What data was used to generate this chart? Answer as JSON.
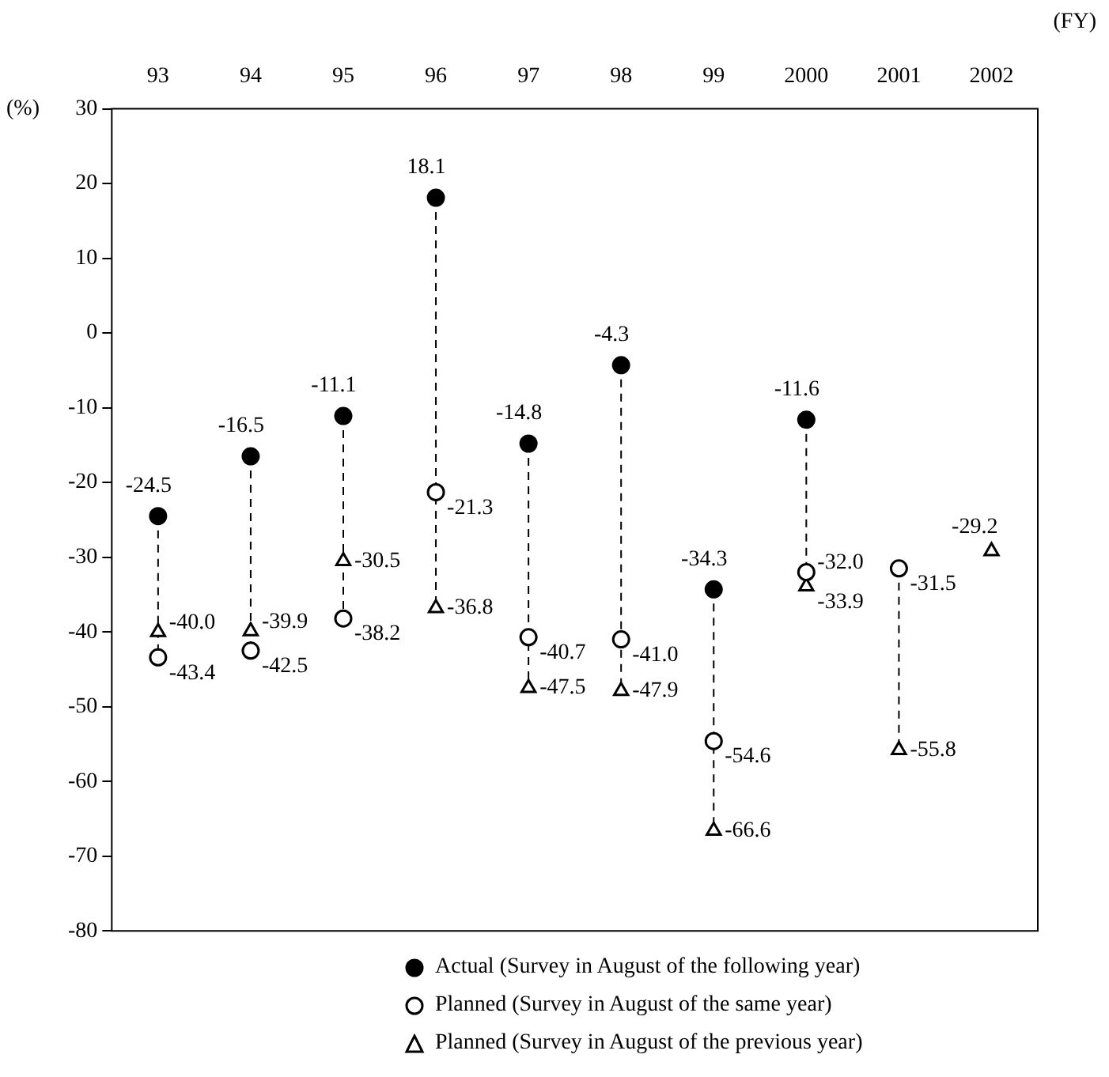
{
  "chart_data": {
    "type": "scatter",
    "xlabel": "(FY)",
    "ylabel": "(%)",
    "categories": [
      "93",
      "94",
      "95",
      "96",
      "97",
      "98",
      "99",
      "2000",
      "2001",
      "2002"
    ],
    "series": [
      {
        "name": "Actual (Survey in August of the following year)",
        "color": "#000000",
        "marker": "circle",
        "values": [
          -24.5,
          -16.5,
          -11.1,
          18.1,
          -14.8,
          -4.3,
          -34.3,
          -11.6,
          null,
          null
        ],
        "value_labels": [
          "-24.5",
          "-16.5",
          "-11.1",
          "18.1",
          "-14.8",
          "-4.3",
          "-34.3",
          "-11.6",
          null,
          null
        ]
      },
      {
        "name": "Planned (Survey in August of the same year)",
        "color": "#000000",
        "marker": "circle_open",
        "values": [
          -43.4,
          -42.5,
          -38.2,
          -21.3,
          -40.7,
          -41.0,
          -54.6,
          -32.0,
          -31.5,
          null
        ],
        "value_labels": [
          "-43.4",
          "-42.5",
          "-38.2",
          "-21.3",
          "-40.7",
          "-41.0",
          "-54.6",
          "-32.0",
          "-31.5",
          null
        ]
      },
      {
        "name": "Planned (Survey in August of the previous year)",
        "color": "#000000",
        "marker": "triangle",
        "values": [
          -40.0,
          -39.9,
          -30.5,
          -36.8,
          -47.5,
          -47.9,
          -66.6,
          -33.9,
          -55.8,
          -29.2
        ],
        "value_labels": [
          "-40.0",
          "-39.9",
          "-30.5",
          "-36.8",
          "-47.5",
          "-47.9",
          "-66.6",
          "-33.9",
          "-55.8",
          "-29.2"
        ]
      }
    ],
    "ylim": [
      -80,
      30
    ],
    "yticks": [
      -80,
      -70,
      -60,
      -50,
      -40,
      -30,
      -20,
      -10,
      0,
      10,
      20,
      30
    ],
    "grid": false,
    "legend": "bottom"
  }
}
